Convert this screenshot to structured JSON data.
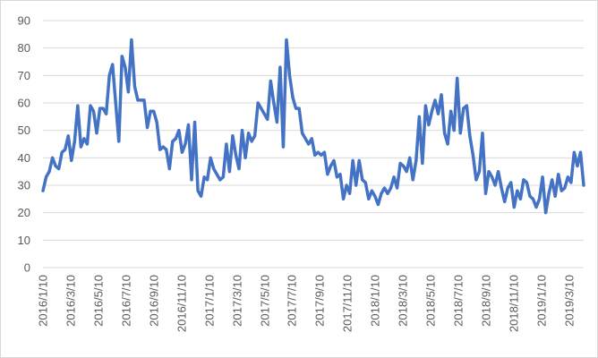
{
  "chart_data": {
    "type": "line",
    "title": "",
    "xlabel": "",
    "ylabel": "",
    "ylim": [
      0,
      90
    ],
    "yticks": [
      "0",
      "10",
      "20",
      "30",
      "40",
      "50",
      "60",
      "70",
      "80",
      "90"
    ],
    "grid": true,
    "legend": "none",
    "x_tick_labels": [
      "2016/1/10",
      "2016/3/10",
      "2016/5/10",
      "2016/7/10",
      "2016/9/10",
      "2016/11/10",
      "2017/1/10",
      "2017/3/10",
      "2017/5/10",
      "2017/7/10",
      "2017/9/10",
      "2017/11/10",
      "2018/1/10",
      "2018/3/10",
      "2018/5/10",
      "2018/7/10",
      "2018/9/10",
      "2018/11/10",
      "2019/1/10",
      "2019/3/10"
    ],
    "series": [
      {
        "color": "#4472c4",
        "values": [
          28,
          33,
          35,
          40,
          37,
          36,
          42,
          43,
          48,
          39,
          46,
          59,
          44,
          47,
          45,
          59,
          57,
          49,
          58,
          58,
          56,
          70,
          74,
          60,
          46,
          77,
          73,
          64,
          83,
          66,
          61,
          61,
          61,
          51,
          57,
          57,
          53,
          43,
          44,
          43,
          36,
          46,
          47,
          50,
          42,
          45,
          52,
          32,
          53,
          28,
          26,
          33,
          32,
          40,
          36,
          34,
          32,
          33,
          45,
          35,
          48,
          41,
          36,
          50,
          40,
          49,
          46,
          48,
          60,
          58,
          56,
          54,
          68,
          60,
          53,
          73,
          44,
          83,
          70,
          62,
          58,
          58,
          49,
          47,
          45,
          47,
          41,
          42,
          41,
          42,
          34,
          37,
          39,
          33,
          34,
          25,
          30,
          27,
          39,
          30,
          39,
          32,
          31,
          25,
          28,
          26,
          23,
          27,
          29,
          27,
          29,
          33,
          29,
          38,
          37,
          35,
          40,
          32,
          39,
          55,
          38,
          59,
          52,
          57,
          61,
          56,
          63,
          49,
          45,
          57,
          50,
          69,
          49,
          58,
          59,
          48,
          41,
          32,
          35,
          49,
          27,
          35,
          33,
          30,
          35,
          29,
          24,
          29,
          31,
          22,
          28,
          25,
          32,
          31,
          26,
          25,
          22,
          25,
          33,
          20,
          27,
          32,
          26,
          34,
          28,
          29,
          33,
          31,
          42,
          37,
          42,
          30
        ]
      }
    ]
  }
}
